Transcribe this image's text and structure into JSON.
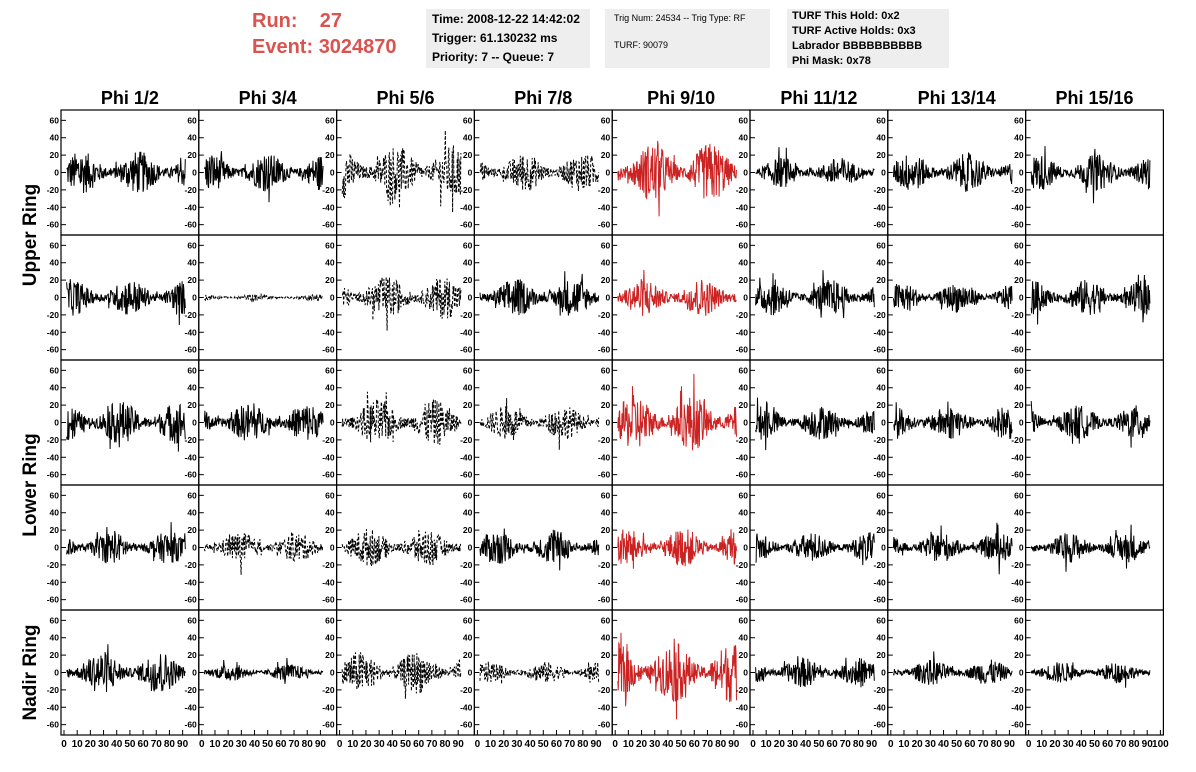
{
  "header": {
    "run_label": "Run:",
    "run_value": "27",
    "event_label": "Event:",
    "event_value": "3024870",
    "time": "Time: 2008-12-22 14:42:02",
    "trigger": "Trigger: 61.130232 ms",
    "priority": "Priority: 7 -- Queue: 7",
    "trig_num": "Trig Num: 24534 -- Trig Type: RF",
    "turf": "TURF: 90079",
    "turf_this_hold": "TURF This Hold: 0x2",
    "turf_active_holds": "TURF Active Holds: 0x3",
    "labrador": "Labrador BBBBBBBBBB",
    "phi_mask": "Phi Mask: 0x78"
  },
  "colors": {
    "accent": "#d9534f",
    "trace": "#000000",
    "highlight_trace": "#cc2222",
    "info_bg": "#eeeeee"
  },
  "chart_data": {
    "type": "line",
    "layout": "grid of 5 rings x 8 phi sectors of waveform panels",
    "columns": [
      "Phi 1/2",
      "Phi 3/4",
      "Phi 5/6",
      "Phi 7/8",
      "Phi 9/10",
      "Phi 11/12",
      "Phi 13/14",
      "Phi 15/16"
    ],
    "row_labels": [
      "Upper Ring",
      "Lower Ring",
      "Nadir Ring"
    ],
    "rows": 5,
    "ylim": [
      -65,
      65
    ],
    "yticks": [
      "60",
      "40",
      "20",
      "0",
      "-20",
      "-40",
      "-60"
    ],
    "xlim": [
      0,
      100
    ],
    "xticks": [
      "0",
      "10",
      "20",
      "30",
      "40",
      "50",
      "60",
      "70",
      "80",
      "90",
      "100"
    ],
    "samples": 260,
    "highlight_column": 4,
    "trace_styles": [
      [
        "solid",
        "solid",
        "dashed",
        "dashed",
        "red",
        "solid",
        "solid",
        "solid"
      ],
      [
        "solid",
        "dashed",
        "dashed",
        "solid",
        "red",
        "solid",
        "solid",
        "solid"
      ],
      [
        "solid",
        "solid",
        "dashed",
        "dashed",
        "red",
        "solid",
        "solid",
        "solid"
      ],
      [
        "solid",
        "dashed",
        "dashed",
        "solid",
        "red",
        "solid",
        "solid",
        "solid"
      ],
      [
        "solid",
        "solid",
        "dashed",
        "dashed",
        "red",
        "solid",
        "solid",
        "solid"
      ]
    ],
    "amplitudes": [
      [
        20,
        18,
        26,
        18,
        28,
        14,
        18,
        17
      ],
      [
        17,
        3,
        20,
        18,
        18,
        17,
        14,
        17
      ],
      [
        20,
        18,
        22,
        16,
        26,
        16,
        16,
        16
      ],
      [
        15,
        14,
        18,
        16,
        18,
        14,
        14,
        14
      ],
      [
        20,
        8,
        20,
        10,
        28,
        14,
        12,
        10
      ]
    ]
  }
}
